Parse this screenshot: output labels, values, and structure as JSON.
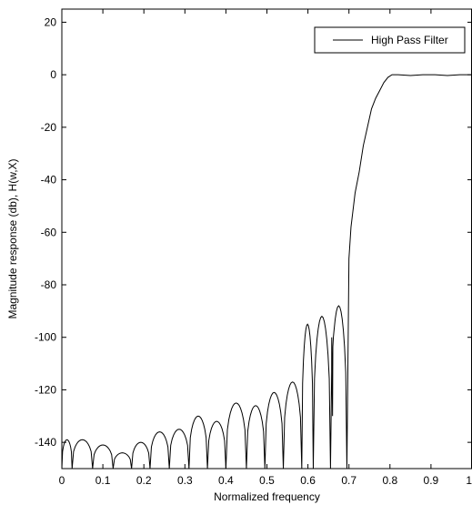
{
  "chart_data": {
    "type": "line",
    "title": "",
    "xlabel": "Normalized frequency",
    "ylabel": "Magnitude response (db), H(w,X)",
    "xlim": [
      0,
      1
    ],
    "ylim": [
      -150,
      25
    ],
    "xticks": [
      0,
      0.1,
      0.2,
      0.3,
      0.4,
      0.5,
      0.6,
      0.7,
      0.8,
      0.9,
      1
    ],
    "xtick_labels": [
      "0",
      "0.1",
      "0.2",
      "0.3",
      "0.4",
      "0.5",
      "0.6",
      "0.7",
      "0.8",
      "0.9",
      "1"
    ],
    "yticks": [
      20,
      0,
      -20,
      -40,
      -60,
      -80,
      -100,
      -120,
      -140
    ],
    "ytick_labels": [
      "20",
      "0",
      "-20",
      "-40",
      "-60",
      "-80",
      "-100",
      "-120",
      "-140"
    ],
    "grid": false,
    "legend": {
      "placement": "top-right",
      "entries": [
        "High Pass Filter"
      ]
    },
    "series": [
      {
        "name": "High Pass Filter",
        "color": "#000000",
        "lobes": [
          {
            "start": 0.0,
            "end": 0.025,
            "peak": -139
          },
          {
            "start": 0.025,
            "end": 0.075,
            "peak": -139
          },
          {
            "start": 0.075,
            "end": 0.125,
            "peak": -141
          },
          {
            "start": 0.125,
            "end": 0.17,
            "peak": -144
          },
          {
            "start": 0.17,
            "end": 0.215,
            "peak": -140
          },
          {
            "start": 0.215,
            "end": 0.262,
            "peak": -136
          },
          {
            "start": 0.262,
            "end": 0.31,
            "peak": -135
          },
          {
            "start": 0.31,
            "end": 0.355,
            "peak": -130
          },
          {
            "start": 0.355,
            "end": 0.4,
            "peak": -132
          },
          {
            "start": 0.4,
            "end": 0.45,
            "peak": -125
          },
          {
            "start": 0.45,
            "end": 0.495,
            "peak": -126
          },
          {
            "start": 0.495,
            "end": 0.54,
            "peak": -121
          },
          {
            "start": 0.54,
            "end": 0.585,
            "peak": -117
          },
          {
            "start": 0.585,
            "end": 0.613,
            "peak": -95
          },
          {
            "start": 0.613,
            "end": 0.655,
            "peak": -92
          },
          {
            "start": 0.655,
            "end": 0.695,
            "peak": -88
          }
        ],
        "dips": [
          {
            "x": 0.66,
            "y": -130
          }
        ],
        "transition": {
          "x": [
            0.695,
            0.7,
            0.705,
            0.715,
            0.725,
            0.735,
            0.745,
            0.755,
            0.765,
            0.775,
            0.785,
            0.795,
            0.805,
            0.82,
            0.85,
            0.88,
            0.91,
            0.94,
            0.97,
            1.0
          ],
          "y": [
            -150,
            -70,
            -58,
            -45,
            -37,
            -27,
            -20,
            -13,
            -9,
            -6,
            -3,
            -1,
            0,
            0,
            -0.3,
            0,
            0,
            -0.3,
            0,
            0
          ]
        }
      }
    ]
  }
}
